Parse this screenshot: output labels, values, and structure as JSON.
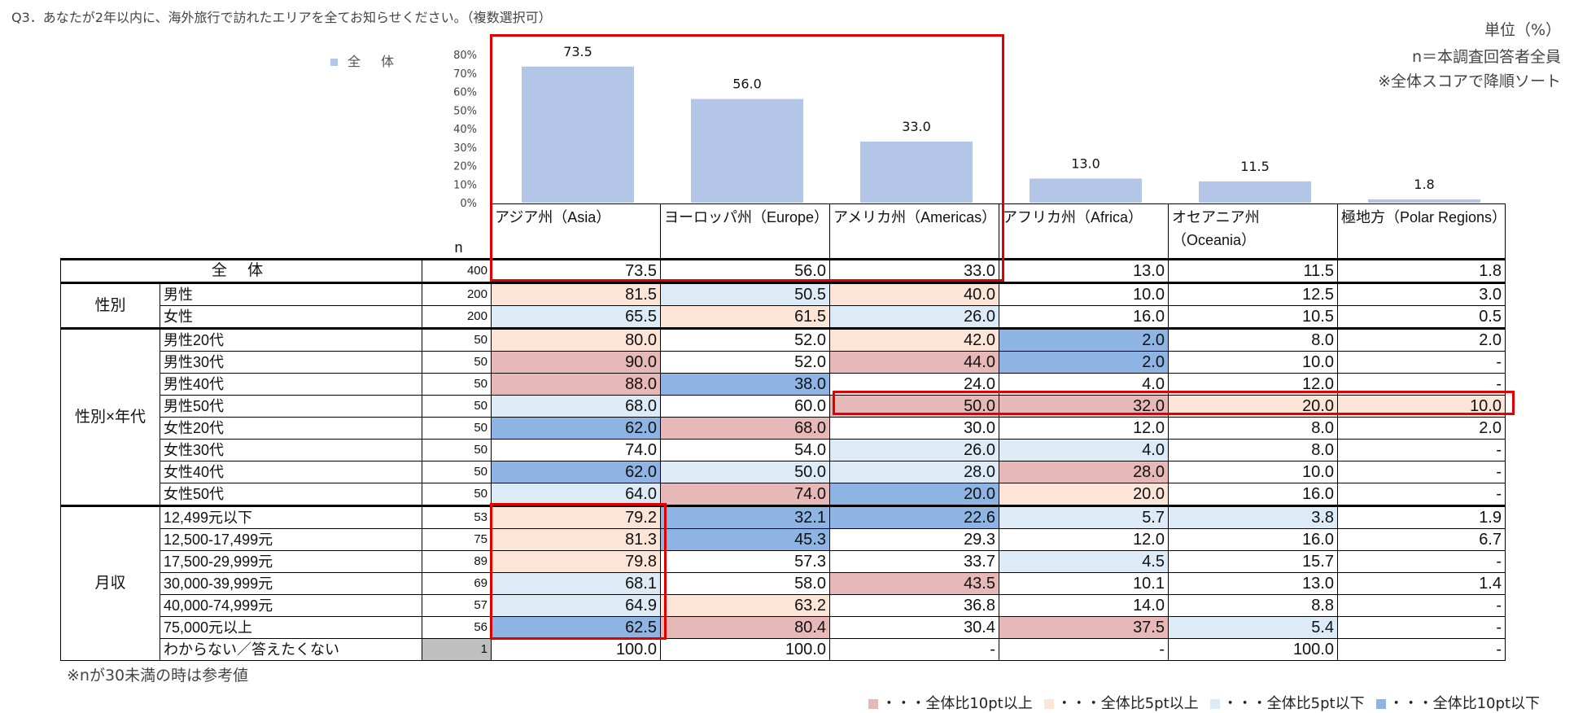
{
  "question": "Q3．あなたが2年以内に、海外旅行で訪れたエリアを全てお知らせください。（複数選択可）",
  "unit": "単位（%）",
  "base": "n＝本調査回答者全員",
  "sort_note": "※全体スコアで降順ソート",
  "legend_all": "全 体",
  "n_header": "n",
  "note": "※nが30未満の時は参考値",
  "colors": {
    "bar": "#b4c6e7",
    "high10": "#e6b8b7",
    "high5": "#fce4d6",
    "low5": "#ddebf7",
    "low10": "#8eb4e3"
  },
  "legend": [
    {
      "key": "high10",
      "label": "・・・全体比10pt以上"
    },
    {
      "key": "high5",
      "label": "・・・全体比5pt以上"
    },
    {
      "key": "low5",
      "label": "・・・全体比5pt以下"
    },
    {
      "key": "low10",
      "label": "・・・全体比10pt以下"
    }
  ],
  "chart_data": {
    "type": "bar",
    "categories": [
      "アジア州（Asia）",
      "ヨーロッパ州（Europe）",
      "アメリカ州（Americas）",
      "アフリカ州（Africa）",
      "オセアニア州（Oceania）",
      "極地方（Polar Regions）"
    ],
    "series": [
      {
        "name": "全 体",
        "values": [
          73.5,
          56.0,
          33.0,
          13.0,
          11.5,
          1.8
        ]
      }
    ],
    "value_labels": [
      "73.5",
      "56.0",
      "33.0",
      "13.0",
      "11.5",
      "1.8"
    ],
    "yticks": [
      "0%",
      "10%",
      "20%",
      "30%",
      "40%",
      "50%",
      "60%",
      "70%",
      "80%"
    ],
    "ylim": [
      0,
      80
    ],
    "legend_position": "left"
  },
  "table": {
    "columns": [
      "アジア州（Asia）",
      "ヨーロッパ州（Europe）",
      "アメリカ州（Americas）",
      "アフリカ州（Africa）",
      "オセアニア州（Oceania）",
      "極地方（Polar Regions）"
    ],
    "rows": [
      {
        "group": "全 体",
        "label": "",
        "n": "400",
        "values": [
          "73.5",
          "56.0",
          "33.0",
          "13.0",
          "11.5",
          "1.8"
        ],
        "shades": [
          "",
          "",
          "",
          "",
          "",
          ""
        ]
      },
      {
        "group": "性別",
        "label": "男性",
        "n": "200",
        "values": [
          "81.5",
          "50.5",
          "40.0",
          "10.0",
          "12.5",
          "3.0"
        ],
        "shades": [
          "high5",
          "low5",
          "high5",
          "",
          "",
          ""
        ]
      },
      {
        "group": "",
        "label": "女性",
        "n": "200",
        "values": [
          "65.5",
          "61.5",
          "26.0",
          "16.0",
          "10.5",
          "0.5"
        ],
        "shades": [
          "low5",
          "high5",
          "low5",
          "",
          "",
          ""
        ]
      },
      {
        "group": "性別×年代",
        "label": "男性20代",
        "n": "50",
        "values": [
          "80.0",
          "52.0",
          "42.0",
          "2.0",
          "8.0",
          "2.0"
        ],
        "shades": [
          "high5",
          "",
          "high5",
          "low10",
          "",
          ""
        ]
      },
      {
        "group": "",
        "label": "男性30代",
        "n": "50",
        "values": [
          "90.0",
          "52.0",
          "44.0",
          "2.0",
          "10.0",
          "-"
        ],
        "shades": [
          "high10",
          "",
          "high10",
          "low10",
          "",
          ""
        ]
      },
      {
        "group": "",
        "label": "男性40代",
        "n": "50",
        "values": [
          "88.0",
          "38.0",
          "24.0",
          "4.0",
          "12.0",
          "-"
        ],
        "shades": [
          "high10",
          "low10",
          "",
          "",
          "",
          ""
        ]
      },
      {
        "group": "",
        "label": "男性50代",
        "n": "50",
        "values": [
          "68.0",
          "60.0",
          "50.0",
          "32.0",
          "20.0",
          "10.0"
        ],
        "shades": [
          "low5",
          "",
          "high10",
          "high10",
          "high5",
          "high5"
        ]
      },
      {
        "group": "",
        "label": "女性20代",
        "n": "50",
        "values": [
          "62.0",
          "68.0",
          "30.0",
          "12.0",
          "8.0",
          "2.0"
        ],
        "shades": [
          "low10",
          "high10",
          "",
          "",
          "",
          ""
        ]
      },
      {
        "group": "",
        "label": "女性30代",
        "n": "50",
        "values": [
          "74.0",
          "54.0",
          "26.0",
          "4.0",
          "8.0",
          "-"
        ],
        "shades": [
          "",
          "",
          "low5",
          "low5",
          "",
          ""
        ]
      },
      {
        "group": "",
        "label": "女性40代",
        "n": "50",
        "values": [
          "62.0",
          "50.0",
          "28.0",
          "28.0",
          "10.0",
          "-"
        ],
        "shades": [
          "low10",
          "low5",
          "low5",
          "high10",
          "",
          ""
        ]
      },
      {
        "group": "",
        "label": "女性50代",
        "n": "50",
        "values": [
          "64.0",
          "74.0",
          "20.0",
          "20.0",
          "16.0",
          "-"
        ],
        "shades": [
          "low5",
          "high10",
          "low10",
          "high5",
          "",
          ""
        ]
      },
      {
        "group": "月収",
        "label": "12,499元以下",
        "n": "53",
        "values": [
          "79.2",
          "32.1",
          "22.6",
          "5.7",
          "3.8",
          "1.9"
        ],
        "shades": [
          "high5",
          "low10",
          "low10",
          "low5",
          "low5",
          ""
        ]
      },
      {
        "group": "",
        "label": "12,500-17,499元",
        "n": "75",
        "values": [
          "81.3",
          "45.3",
          "29.3",
          "12.0",
          "16.0",
          "6.7"
        ],
        "shades": [
          "high5",
          "low10",
          "",
          "",
          "",
          ""
        ]
      },
      {
        "group": "",
        "label": "17,500-29,999元",
        "n": "89",
        "values": [
          "79.8",
          "57.3",
          "33.7",
          "4.5",
          "15.7",
          "-"
        ],
        "shades": [
          "high5",
          "",
          "",
          "low5",
          "",
          ""
        ]
      },
      {
        "group": "",
        "label": "30,000-39,999元",
        "n": "69",
        "values": [
          "68.1",
          "58.0",
          "43.5",
          "10.1",
          "13.0",
          "1.4"
        ],
        "shades": [
          "low5",
          "",
          "high10",
          "",
          "",
          ""
        ]
      },
      {
        "group": "",
        "label": "40,000-74,999元",
        "n": "57",
        "values": [
          "64.9",
          "63.2",
          "36.8",
          "14.0",
          "8.8",
          "-"
        ],
        "shades": [
          "low5",
          "high5",
          "",
          "",
          "",
          ""
        ]
      },
      {
        "group": "",
        "label": "75,000元以上",
        "n": "56",
        "values": [
          "62.5",
          "80.4",
          "30.4",
          "37.5",
          "5.4",
          "-"
        ],
        "shades": [
          "low10",
          "high10",
          "",
          "high10",
          "low5",
          ""
        ]
      },
      {
        "group": "",
        "label": "わからない／答えたくない",
        "n": "1",
        "values": [
          "100.0",
          "100.0",
          "-",
          "-",
          "100.0",
          "-"
        ],
        "shades": [
          "",
          "",
          "",
          "",
          "",
          ""
        ]
      }
    ]
  }
}
